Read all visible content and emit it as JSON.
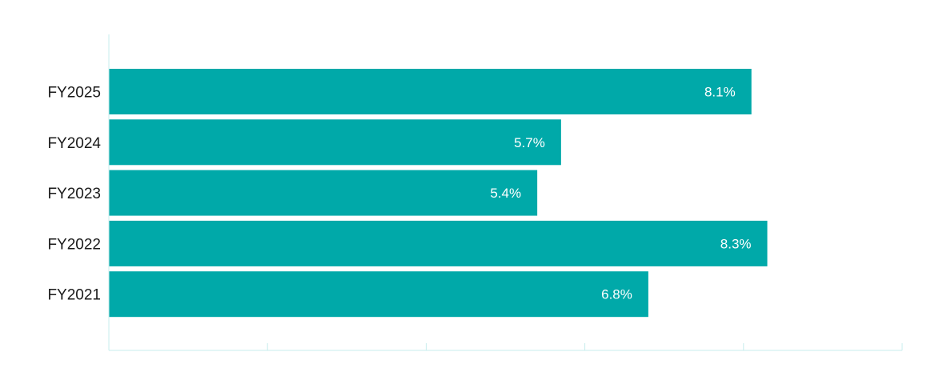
{
  "chart_data": {
    "type": "bar",
    "orientation": "horizontal",
    "categories": [
      "FY2025",
      "FY2024",
      "FY2023",
      "FY2022",
      "FY2021"
    ],
    "values": [
      8.1,
      5.7,
      5.4,
      8.3,
      6.8
    ],
    "value_labels": [
      "8.1%",
      "5.7%",
      "5.4%",
      "8.3%",
      "6.8%"
    ],
    "unit": "%",
    "xlim": [
      0,
      10
    ],
    "x_ticks": [
      0,
      2,
      4,
      6,
      8,
      10
    ],
    "bar_color": "#00a9a9",
    "axis_color": "#c7ecec",
    "title": "",
    "xlabel": "",
    "ylabel": "",
    "grid": false,
    "legend": "none"
  }
}
